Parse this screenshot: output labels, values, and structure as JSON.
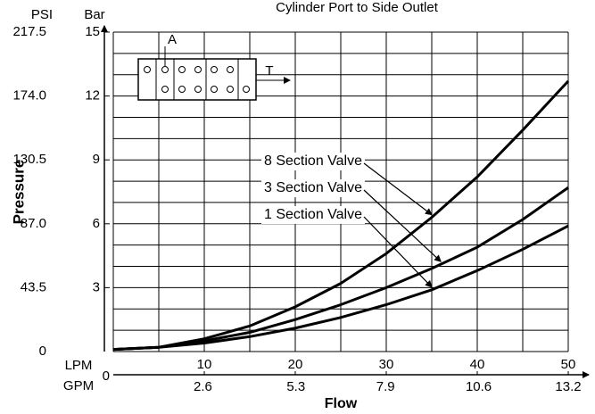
{
  "chart_data": {
    "type": "line",
    "title": "Cylinder Port to Side Outlet",
    "ylabel": "Pressure",
    "ylabel_units": "Bar",
    "y2label_units": "PSI",
    "xlabel": "Flow",
    "xlabel_units": "LPM",
    "x2label_units": "GPM",
    "x": [
      0,
      5,
      10,
      15,
      20,
      25,
      30,
      35,
      40,
      45,
      50
    ],
    "series": [
      {
        "name": "8 Section Valve",
        "color": "#000000",
        "values": [
          0.1,
          0.2,
          0.6,
          1.2,
          2.1,
          3.2,
          4.6,
          6.3,
          8.2,
          10.4,
          12.7
        ]
      },
      {
        "name": "3 Section Valve",
        "color": "#000000",
        "values": [
          0.1,
          0.2,
          0.5,
          0.9,
          1.5,
          2.2,
          3.0,
          3.9,
          4.9,
          6.2,
          7.7
        ]
      },
      {
        "name": "1 Section Valve",
        "color": "#000000",
        "values": [
          0.1,
          0.2,
          0.4,
          0.7,
          1.1,
          1.6,
          2.2,
          2.9,
          3.8,
          4.8,
          5.9
        ]
      }
    ],
    "annotation_targets": [
      35,
      36,
      35
    ],
    "xlim": [
      0,
      50
    ],
    "xticks": [
      10,
      20,
      30,
      40,
      50
    ],
    "x2lim": [
      0,
      13.2
    ],
    "x2ticks": [
      0,
      2.6,
      5.3,
      7.9,
      10.6,
      13.2
    ],
    "ylim": [
      0,
      15
    ],
    "yticks": [
      3,
      6,
      9,
      12,
      15
    ],
    "y2lim": [
      0,
      217.5
    ],
    "y2ticks": [
      0,
      43.5,
      {
        "value": 87,
        "label": "87.0"
      },
      130.5,
      {
        "value": 174,
        "label": "174.0"
      },
      217.5
    ],
    "xgrid": [
      0,
      5,
      10,
      15,
      20,
      25,
      30,
      35,
      40,
      45,
      50
    ],
    "ygrid": [
      0,
      1,
      2,
      3,
      4,
      5,
      6,
      7,
      8,
      9,
      10,
      11,
      12,
      13,
      14,
      15
    ],
    "inset_labels": [
      "A",
      "T"
    ]
  }
}
